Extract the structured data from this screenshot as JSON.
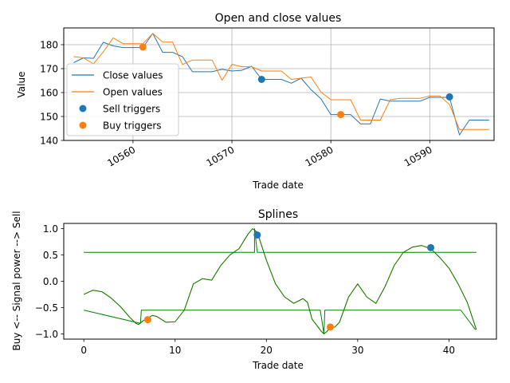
{
  "colors": {
    "blue": "#1f77b4",
    "orange": "#ff7f0e",
    "green": "#008000",
    "grid": "#b0b0b0",
    "axis": "#000000"
  },
  "chart_data": [
    {
      "type": "line",
      "title": "Open and close values",
      "xlabel": "Trade date",
      "ylabel": "Value",
      "xlim": [
        10553.0,
        10596.5
      ],
      "ylim": [
        140,
        187
      ],
      "xticks": [
        10560,
        10570,
        10580,
        10590
      ],
      "yticks": [
        140,
        150,
        160,
        170,
        180
      ],
      "grid": true,
      "legend_position": "center-left",
      "series": [
        {
          "name": "Close values",
          "kind": "line",
          "color": "#1f77b4",
          "x": [
            10554,
            10555,
            10556,
            10557,
            10558,
            10559,
            10560,
            10561,
            10562,
            10563,
            10564,
            10565,
            10566,
            10567,
            10568,
            10569,
            10570,
            10571,
            10572,
            10573,
            10574,
            10575,
            10576,
            10577,
            10578,
            10579,
            10580,
            10581,
            10582,
            10583,
            10584,
            10585,
            10586,
            10587,
            10588,
            10589,
            10590,
            10591,
            10592,
            10593,
            10594,
            10595,
            10596
          ],
          "values": [
            172.5,
            174.5,
            174.3,
            181.0,
            179.5,
            178.8,
            178.8,
            178.8,
            184.7,
            176.8,
            176.8,
            175.0,
            168.7,
            168.7,
            168.7,
            169.7,
            169.0,
            169.3,
            171.0,
            165.5,
            165.5,
            165.5,
            163.9,
            166.0,
            161.2,
            157.4,
            150.8,
            150.8,
            150.8,
            146.9,
            146.9,
            157.3,
            156.4,
            156.4,
            156.4,
            156.4,
            158.0,
            158.0,
            158.0,
            142.3,
            148.5,
            148.5,
            148.5
          ]
        },
        {
          "name": "Open values",
          "kind": "line",
          "color": "#ff7f0e",
          "x": [
            10554,
            10555,
            10556,
            10557,
            10558,
            10559,
            10560,
            10561,
            10562,
            10563,
            10564,
            10565,
            10566,
            10567,
            10568,
            10569,
            10570,
            10571,
            10572,
            10573,
            10574,
            10575,
            10576,
            10577,
            10578,
            10579,
            10580,
            10581,
            10582,
            10583,
            10584,
            10585,
            10586,
            10587,
            10588,
            10589,
            10590,
            10591,
            10592,
            10593,
            10594,
            10595,
            10596
          ],
          "values": [
            175.0,
            174.5,
            172.0,
            177.0,
            182.8,
            180.4,
            180.4,
            180.4,
            184.7,
            181.1,
            181.1,
            171.7,
            173.6,
            173.6,
            173.6,
            165.1,
            171.8,
            170.8,
            170.8,
            169.0,
            169.0,
            169.0,
            165.5,
            166.0,
            166.5,
            160.2,
            157.0,
            157.0,
            157.0,
            148.5,
            148.5,
            148.5,
            157.0,
            157.6,
            157.6,
            157.6,
            158.6,
            158.6,
            155.0,
            144.6,
            144.6,
            144.6,
            144.6
          ]
        },
        {
          "name": "Sell triggers",
          "kind": "scatter",
          "color": "#1f77b4",
          "x": [
            10573,
            10592
          ],
          "values": [
            165.5,
            158.2
          ]
        },
        {
          "name": "Buy triggers",
          "kind": "scatter",
          "color": "#ff7f0e",
          "x": [
            10561,
            10581
          ],
          "values": [
            179.0,
            150.8
          ]
        }
      ]
    },
    {
      "type": "line",
      "title": "Splines",
      "xlabel": "Trade date",
      "ylabel": "Buy <-- Signal power --> Sell",
      "xlim": [
        -2.2,
        45.2
      ],
      "ylim": [
        -1.1,
        1.1
      ],
      "xticks": [
        0,
        10,
        20,
        30,
        40
      ],
      "yticks": [
        -1.0,
        -0.5,
        0.0,
        0.5,
        1.0
      ],
      "ytick_labels": [
        "−1.0",
        "−0.5",
        "0.0",
        "0.5",
        "1.0"
      ],
      "grid": false,
      "series": [
        {
          "kind": "line",
          "color": "#ff7f0e",
          "x": [
            0,
            1,
            2,
            3,
            4,
            5,
            5.7,
            6,
            6.5,
            7,
            7.5,
            8,
            9,
            10,
            11,
            12,
            13,
            14,
            15,
            16,
            17,
            18,
            18.5,
            19,
            20,
            21,
            22,
            23,
            24,
            24.5,
            25,
            26,
            26.3,
            26.6,
            27,
            27.5,
            28,
            29,
            30,
            31,
            32,
            33,
            34,
            35,
            36,
            37,
            38,
            39,
            40,
            41,
            42,
            43
          ],
          "values": [
            -0.25,
            -0.17,
            -0.2,
            -0.32,
            -0.48,
            -0.68,
            -0.8,
            -0.82,
            -0.75,
            -0.7,
            -0.65,
            -0.67,
            -0.78,
            -0.77,
            -0.55,
            -0.05,
            0.05,
            0.02,
            0.3,
            0.5,
            0.62,
            0.9,
            1.0,
            0.93,
            0.4,
            -0.05,
            -0.3,
            -0.42,
            -0.33,
            -0.4,
            -0.72,
            -0.95,
            -1.0,
            -0.96,
            -0.88,
            -0.87,
            -0.78,
            -0.3,
            -0.05,
            -0.3,
            -0.42,
            -0.1,
            0.3,
            0.55,
            0.65,
            0.68,
            0.62,
            0.45,
            0.25,
            -0.05,
            -0.4,
            -0.92
          ]
        },
        {
          "kind": "line",
          "color": "#008000",
          "x": [
            0,
            1,
            2,
            3,
            4,
            5,
            5.7,
            6,
            6.5,
            7,
            7.5,
            8,
            9,
            10,
            11,
            12,
            13,
            14,
            15,
            16,
            17,
            18,
            18.5,
            19,
            20,
            21,
            22,
            23,
            24,
            24.5,
            25,
            26,
            26.3,
            26.6,
            27,
            27.5,
            28,
            29,
            30,
            31,
            32,
            33,
            34,
            35,
            36,
            37,
            38,
            39,
            40,
            41,
            42,
            43
          ],
          "values": [
            -0.25,
            -0.17,
            -0.2,
            -0.32,
            -0.48,
            -0.68,
            -0.8,
            -0.82,
            -0.75,
            -0.7,
            -0.65,
            -0.67,
            -0.78,
            -0.77,
            -0.55,
            -0.05,
            0.05,
            0.02,
            0.3,
            0.5,
            0.62,
            0.9,
            1.0,
            0.93,
            0.4,
            -0.05,
            -0.3,
            -0.42,
            -0.33,
            -0.4,
            -0.72,
            -0.95,
            -1.0,
            -0.96,
            -0.88,
            -0.87,
            -0.78,
            -0.3,
            -0.05,
            -0.3,
            -0.42,
            -0.1,
            0.3,
            0.55,
            0.65,
            0.68,
            0.62,
            0.45,
            0.25,
            -0.05,
            -0.4,
            -0.92
          ]
        },
        {
          "kind": "line",
          "color": "#008000",
          "x": [
            0,
            18.7,
            18.7,
            19,
            37.5,
            38.1,
            43
          ],
          "values": [
            0.55,
            0.55,
            1.0,
            0.55,
            0.55,
            0.55,
            0.55
          ]
        },
        {
          "kind": "line",
          "color": "#008000",
          "x": [
            0,
            6.2,
            6.3,
            25.9,
            26.3,
            26.4,
            41.3,
            42.9
          ],
          "values": [
            -0.55,
            -0.8,
            -0.55,
            -0.55,
            -1.0,
            -0.55,
            -0.55,
            -0.92
          ]
        },
        {
          "kind": "scatter",
          "color": "#1f77b4",
          "x": [
            19,
            38
          ],
          "values": [
            0.88,
            0.64
          ]
        },
        {
          "kind": "scatter",
          "color": "#ff7f0e",
          "x": [
            7,
            27
          ],
          "values": [
            -0.73,
            -0.87
          ]
        }
      ]
    }
  ]
}
